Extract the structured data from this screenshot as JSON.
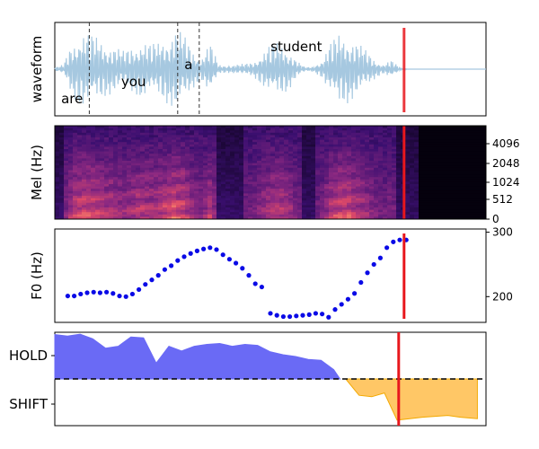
{
  "figure": {
    "panels": [
      {
        "ylabel": "waveform"
      },
      {
        "ylabel": "Mel (Hz)"
      },
      {
        "ylabel": "F0 (Hz)"
      },
      {
        "ylabel": ""
      }
    ],
    "colors": {
      "waveform": "#a6c8e0",
      "word_boundary": "#333333",
      "cursor": "#e8171d",
      "f0_points": "#0a0ae6",
      "hold_fill": "#6a6af5",
      "shift_fill": "#ffc766",
      "threshold_line": "#000000"
    }
  },
  "chart_data": [
    {
      "type": "line",
      "panel": "waveform",
      "ylabel": "waveform",
      "xlim": [
        0,
        1
      ],
      "words": [
        {
          "label": "are",
          "start": 0.0,
          "end": 0.08
        },
        {
          "label": "you",
          "start": 0.08,
          "end": 0.285
        },
        {
          "label": "a",
          "start": 0.285,
          "end": 0.335
        },
        {
          "label": "student",
          "start": 0.335,
          "end": 0.81
        }
      ],
      "boundaries": [
        0.08,
        0.285,
        0.335
      ],
      "cursor_x": 0.81,
      "envelope": [
        [
          0.0,
          0.02
        ],
        [
          0.02,
          0.05
        ],
        [
          0.04,
          0.3
        ],
        [
          0.06,
          0.42
        ],
        [
          0.08,
          0.4
        ],
        [
          0.1,
          0.35
        ],
        [
          0.12,
          0.3
        ],
        [
          0.14,
          0.25
        ],
        [
          0.16,
          0.2
        ],
        [
          0.18,
          0.26
        ],
        [
          0.2,
          0.32
        ],
        [
          0.22,
          0.28
        ],
        [
          0.24,
          0.3
        ],
        [
          0.26,
          0.38
        ],
        [
          0.28,
          0.45
        ],
        [
          0.3,
          0.38
        ],
        [
          0.32,
          0.22
        ],
        [
          0.34,
          0.12
        ],
        [
          0.36,
          0.3
        ],
        [
          0.38,
          0.05
        ],
        [
          0.4,
          0.04
        ],
        [
          0.42,
          0.05
        ],
        [
          0.44,
          0.06
        ],
        [
          0.46,
          0.08
        ],
        [
          0.48,
          0.18
        ],
        [
          0.5,
          0.28
        ],
        [
          0.52,
          0.3
        ],
        [
          0.54,
          0.25
        ],
        [
          0.56,
          0.1
        ],
        [
          0.58,
          0.02
        ],
        [
          0.6,
          0.03
        ],
        [
          0.62,
          0.1
        ],
        [
          0.64,
          0.3
        ],
        [
          0.66,
          0.4
        ],
        [
          0.68,
          0.38
        ],
        [
          0.7,
          0.3
        ],
        [
          0.72,
          0.22
        ],
        [
          0.74,
          0.12
        ],
        [
          0.76,
          0.05
        ],
        [
          0.78,
          0.1
        ],
        [
          0.79,
          0.06
        ],
        [
          0.8,
          0.02
        ],
        [
          0.81,
          0.01
        ],
        [
          0.82,
          0.0
        ],
        [
          1.0,
          0.0
        ]
      ]
    },
    {
      "type": "heatmap",
      "panel": "mel",
      "ylabel": "Mel (Hz)",
      "yticks": [
        0,
        512,
        1024,
        2048,
        4096
      ],
      "colormap": "magma",
      "active_until": 0.84,
      "cursor_x": 0.81
    },
    {
      "type": "scatter",
      "panel": "f0",
      "ylabel": "F0 (Hz)",
      "yticks": [
        200,
        300
      ],
      "ylim": [
        160,
        305
      ],
      "cursor_x": 0.81,
      "x": [
        0.03,
        0.045,
        0.06,
        0.075,
        0.09,
        0.105,
        0.12,
        0.135,
        0.15,
        0.165,
        0.18,
        0.195,
        0.21,
        0.225,
        0.24,
        0.255,
        0.27,
        0.285,
        0.3,
        0.315,
        0.33,
        0.345,
        0.36,
        0.375,
        0.39,
        0.405,
        0.42,
        0.435,
        0.45,
        0.465,
        0.48,
        0.495,
        0.51,
        0.525,
        0.54,
        0.555,
        0.57,
        0.585,
        0.6,
        0.615,
        0.63,
        0.645,
        0.66,
        0.675,
        0.69,
        0.705,
        0.72,
        0.735,
        0.75
      ],
      "y": [
        201,
        201,
        204,
        206,
        207,
        206,
        207,
        205,
        201,
        200,
        204,
        211,
        219,
        226,
        233,
        242,
        248,
        256,
        262,
        267,
        271,
        274,
        276,
        273,
        265,
        258,
        252,
        244,
        233,
        220,
        215,
        null,
        null,
        null,
        null,
        null,
        null,
        null,
        null,
        null,
        null,
        null,
        null,
        null,
        null,
        null,
        null,
        null,
        null
      ]
    },
    {
      "type": "area",
      "panel": "turn",
      "categories": [
        "HOLD",
        "SHIFT"
      ],
      "threshold": 0.0,
      "ylim": [
        -1.0,
        1.0
      ],
      "cursor_x": 0.81,
      "x": [
        0.0,
        0.03,
        0.06,
        0.09,
        0.12,
        0.15,
        0.18,
        0.21,
        0.24,
        0.27,
        0.3,
        0.33,
        0.36,
        0.39,
        0.42,
        0.45,
        0.48,
        0.51,
        0.54,
        0.57,
        0.6,
        0.63,
        0.66,
        0.69,
        0.72,
        0.75,
        0.78,
        0.81,
        0.84,
        0.87,
        0.9,
        0.93,
        0.96,
        1.0
      ],
      "y": [
        0.95,
        0.92,
        0.96,
        0.86,
        0.66,
        0.7,
        0.9,
        0.88,
        0.34,
        0.7,
        0.6,
        0.7,
        0.74,
        0.76,
        0.7,
        0.74,
        0.72,
        0.58,
        0.52,
        0.48,
        0.42,
        0.4,
        0.2,
        -0.02,
        -0.35,
        -0.38,
        -0.3,
        -0.88,
        -0.85,
        -0.82,
        -0.8,
        -0.78,
        -0.82,
        -0.85
      ]
    }
  ]
}
